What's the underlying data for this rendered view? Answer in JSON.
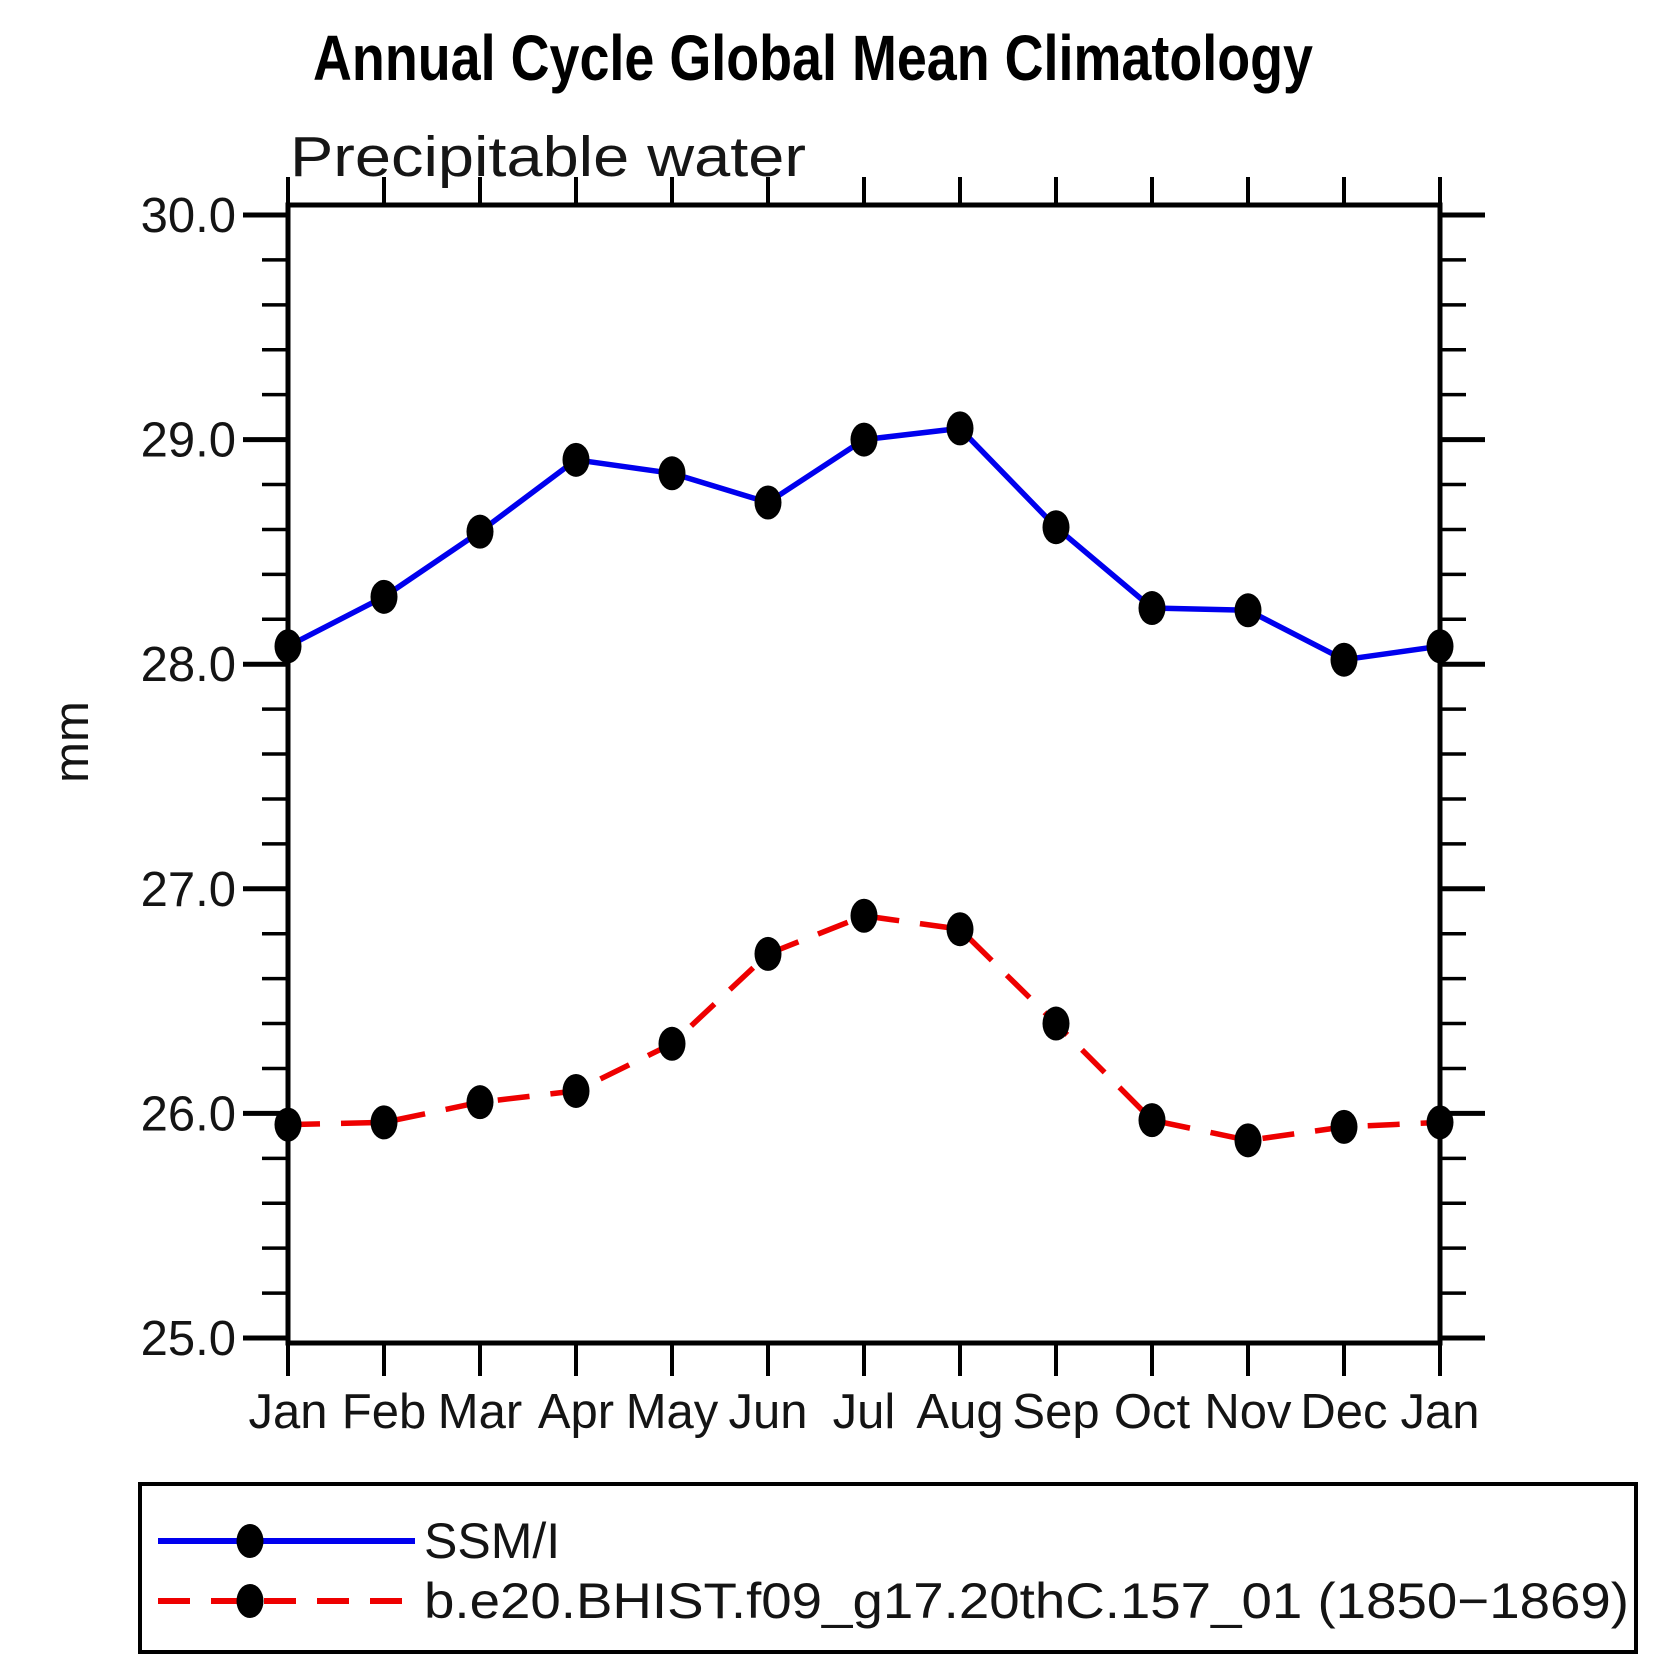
{
  "title": "Annual Cycle Global Mean Climatology",
  "subtitle": "Precipitable water",
  "chart_data": {
    "type": "line",
    "title": "Annual Cycle Global Mean Climatology",
    "subtitle": "Precipitable water",
    "xlabel": "",
    "ylabel": "mm",
    "ylim": [
      25.0,
      30.0
    ],
    "ytick_step": 1.0,
    "yminor_step": 0.2,
    "ytick_labels": [
      "25.0",
      "26.0",
      "27.0",
      "28.0",
      "29.0",
      "30.0"
    ],
    "grid": false,
    "legend_position": "bottom-left-box",
    "categories": [
      "Jan",
      "Feb",
      "Mar",
      "Apr",
      "May",
      "Jun",
      "Jul",
      "Aug",
      "Sep",
      "Oct",
      "Nov",
      "Dec",
      "Jan"
    ],
    "series": [
      {
        "name": "SSM/I",
        "color": "#0000ee",
        "line_style": "solid",
        "marker": "black-dot",
        "values": [
          28.08,
          28.3,
          28.59,
          28.91,
          28.85,
          28.72,
          29.0,
          29.05,
          28.61,
          28.25,
          28.24,
          28.02,
          28.08
        ]
      },
      {
        "name": "b.e20.BHIST.f09_g17.20thC.157_01 (1850−1869)",
        "color": "#ee0000",
        "line_style": "dashed",
        "marker": "black-dot",
        "values": [
          25.95,
          25.96,
          26.05,
          26.1,
          26.31,
          26.71,
          26.88,
          26.82,
          26.4,
          25.97,
          25.88,
          25.94,
          25.96
        ]
      }
    ]
  }
}
